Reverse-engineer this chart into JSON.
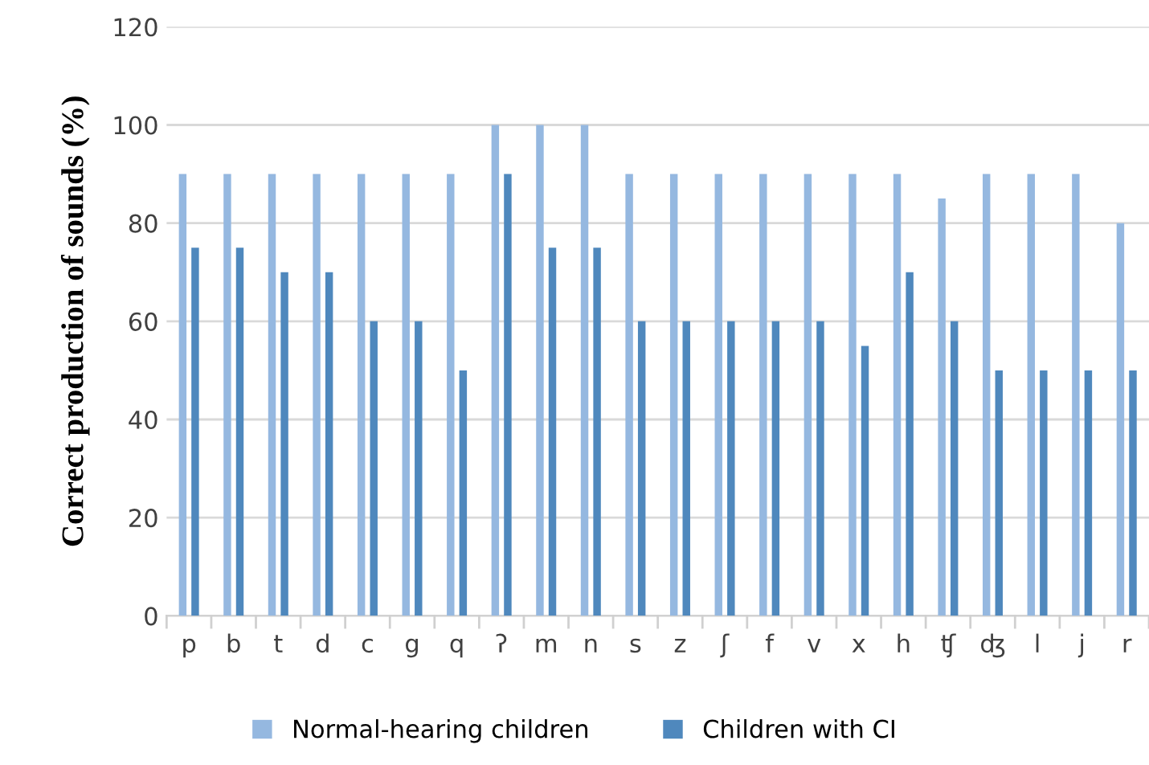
{
  "chart_data": {
    "type": "bar",
    "ylabel": "Correct production of sounds (%)",
    "categories": [
      "p",
      "b",
      "t",
      "d",
      "c",
      "g",
      "q",
      "ʔ",
      "m",
      "n",
      "s",
      "z",
      "ʃ",
      "f",
      "v",
      "x",
      "h",
      "ʧ",
      "ʤ",
      "l",
      "j",
      "r"
    ],
    "series": [
      {
        "name": "Normal-hearing children",
        "color": "#95b8e0",
        "values": [
          90,
          90,
          90,
          90,
          90,
          90,
          90,
          100,
          100,
          100,
          90,
          90,
          90,
          90,
          90,
          90,
          90,
          85,
          90,
          90,
          90,
          80
        ]
      },
      {
        "name": "Children with CI",
        "color": "#4f88bd",
        "values": [
          75,
          75,
          70,
          70,
          60,
          60,
          50,
          90,
          75,
          75,
          60,
          60,
          60,
          60,
          60,
          55,
          70,
          60,
          50,
          50,
          50,
          50
        ]
      }
    ],
    "ylim": [
      0,
      120
    ],
    "yticks": [
      0,
      20,
      40,
      60,
      80,
      100,
      120
    ],
    "grid": "y",
    "legend": "bottom"
  }
}
